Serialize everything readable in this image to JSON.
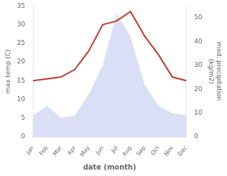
{
  "chart_data": {
    "type": "line",
    "categories": [
      "Jan",
      "Feb",
      "Mar",
      "Apr",
      "May",
      "Jun",
      "Jul",
      "Aug",
      "Sep",
      "Oct",
      "Nov",
      "Dec"
    ],
    "series": [
      {
        "type": "area",
        "axis": "y2",
        "color": "#b0b8e8",
        "values": [
          9,
          13,
          8,
          9,
          18,
          30,
          52,
          42,
          22,
          13,
          10,
          9
        ]
      },
      {
        "type": "line",
        "color": "#c0392b",
        "values": [
          15,
          15.5,
          16,
          18,
          23,
          30,
          31,
          33.5,
          27,
          22,
          16,
          15
        ]
      }
    ],
    "xlabel": "date (month)",
    "ylabel": "max temp (C)",
    "y2label": "med. precipitation\n(kg/m2)",
    "ylim": [
      0,
      35
    ],
    "yticks": [
      0,
      5,
      10,
      15,
      20,
      25,
      30,
      35
    ],
    "y2lim": [
      0,
      55
    ],
    "y2ticks": [
      0,
      10,
      20,
      30,
      40,
      50
    ],
    "grid": false
  }
}
